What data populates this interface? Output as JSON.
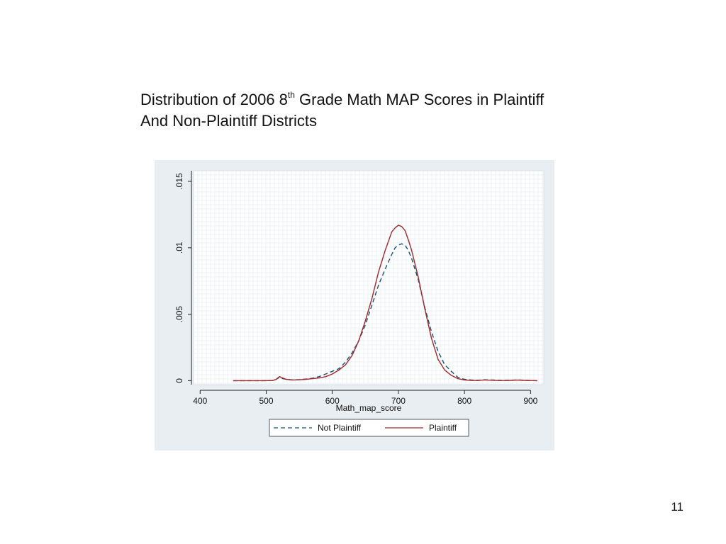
{
  "slide": {
    "title_prefix": "Distribution of 2006 8",
    "title_superscript": "th",
    "title_rest": " Grade Math MAP Scores in Plaintiff",
    "title_line2": "And Non-Plaintiff Districts",
    "page_number": "11"
  },
  "colors": {
    "panel_background": "#e8eef2",
    "plot_background": "#ffffff",
    "grid": "#dde6ec",
    "not_plaintiff": "#1a4f7a",
    "plaintiff": "#a3272a"
  },
  "chart_data": {
    "type": "line",
    "title": "",
    "xlabel": "Math_map_score",
    "ylabel": "",
    "xlim": [
      390,
      920
    ],
    "ylim": [
      -0.0003,
      0.0158
    ],
    "x_ticks": [
      400,
      500,
      600,
      700,
      800,
      900
    ],
    "x_tick_labels": [
      "400",
      "500",
      "600",
      "700",
      "800",
      "900"
    ],
    "y_ticks": [
      0,
      0.005,
      0.01,
      0.015
    ],
    "y_tick_labels": [
      "0",
      ".005",
      ".01",
      ".015"
    ],
    "grid": true,
    "legend_position": "bottom",
    "series": [
      {
        "name": "Not Plaintiff",
        "style": "dashed",
        "x": [
          450,
          465,
          480,
          495,
          510,
          515,
          520,
          525,
          530,
          540,
          550,
          560,
          570,
          580,
          590,
          600,
          610,
          620,
          630,
          640,
          650,
          660,
          670,
          680,
          690,
          695,
          700,
          705,
          710,
          715,
          720,
          730,
          740,
          750,
          760,
          770,
          780,
          790,
          800,
          810,
          820,
          830,
          840,
          850,
          860,
          870,
          880,
          890,
          900,
          910
        ],
        "y": [
          0,
          0,
          0,
          0,
          1e-05,
          0.0001,
          0.00025,
          0.00015,
          0.0001,
          5e-05,
          8e-05,
          0.00012,
          0.00018,
          0.0003,
          0.0005,
          0.0007,
          0.0009,
          0.0014,
          0.0021,
          0.003,
          0.0042,
          0.0057,
          0.0072,
          0.0084,
          0.0095,
          0.01,
          0.0102,
          0.0103,
          0.0102,
          0.0098,
          0.0092,
          0.0076,
          0.0055,
          0.0037,
          0.0022,
          0.0012,
          0.0007,
          0.00025,
          0.0001,
          5e-05,
          3e-05,
          6e-05,
          5e-05,
          3e-05,
          2e-05,
          3e-05,
          5e-05,
          3e-05,
          1e-05,
          0
        ]
      },
      {
        "name": "Plaintiff",
        "style": "solid",
        "x": [
          450,
          465,
          480,
          495,
          510,
          515,
          520,
          525,
          530,
          540,
          550,
          560,
          570,
          580,
          590,
          600,
          610,
          620,
          630,
          640,
          650,
          660,
          670,
          680,
          690,
          695,
          700,
          705,
          710,
          715,
          720,
          730,
          740,
          750,
          760,
          770,
          780,
          790,
          800,
          810,
          820,
          830,
          840,
          850,
          860,
          870,
          880,
          890,
          900,
          910
        ],
        "y": [
          0,
          0,
          0,
          0,
          1e-05,
          0.0001,
          0.0003,
          0.0002,
          0.0001,
          5e-05,
          6e-05,
          0.0001,
          0.00015,
          0.0002,
          0.0003,
          0.0005,
          0.0008,
          0.0012,
          0.0019,
          0.003,
          0.0045,
          0.0062,
          0.0082,
          0.0098,
          0.0112,
          0.0115,
          0.0117,
          0.0116,
          0.0113,
          0.0106,
          0.0098,
          0.0078,
          0.0054,
          0.0032,
          0.0016,
          0.0008,
          0.0004,
          0.00015,
          5e-05,
          2e-05,
          1e-05,
          5e-05,
          3e-05,
          1e-05,
          1e-05,
          2e-05,
          4e-05,
          2e-05,
          1e-05,
          0
        ]
      }
    ]
  }
}
